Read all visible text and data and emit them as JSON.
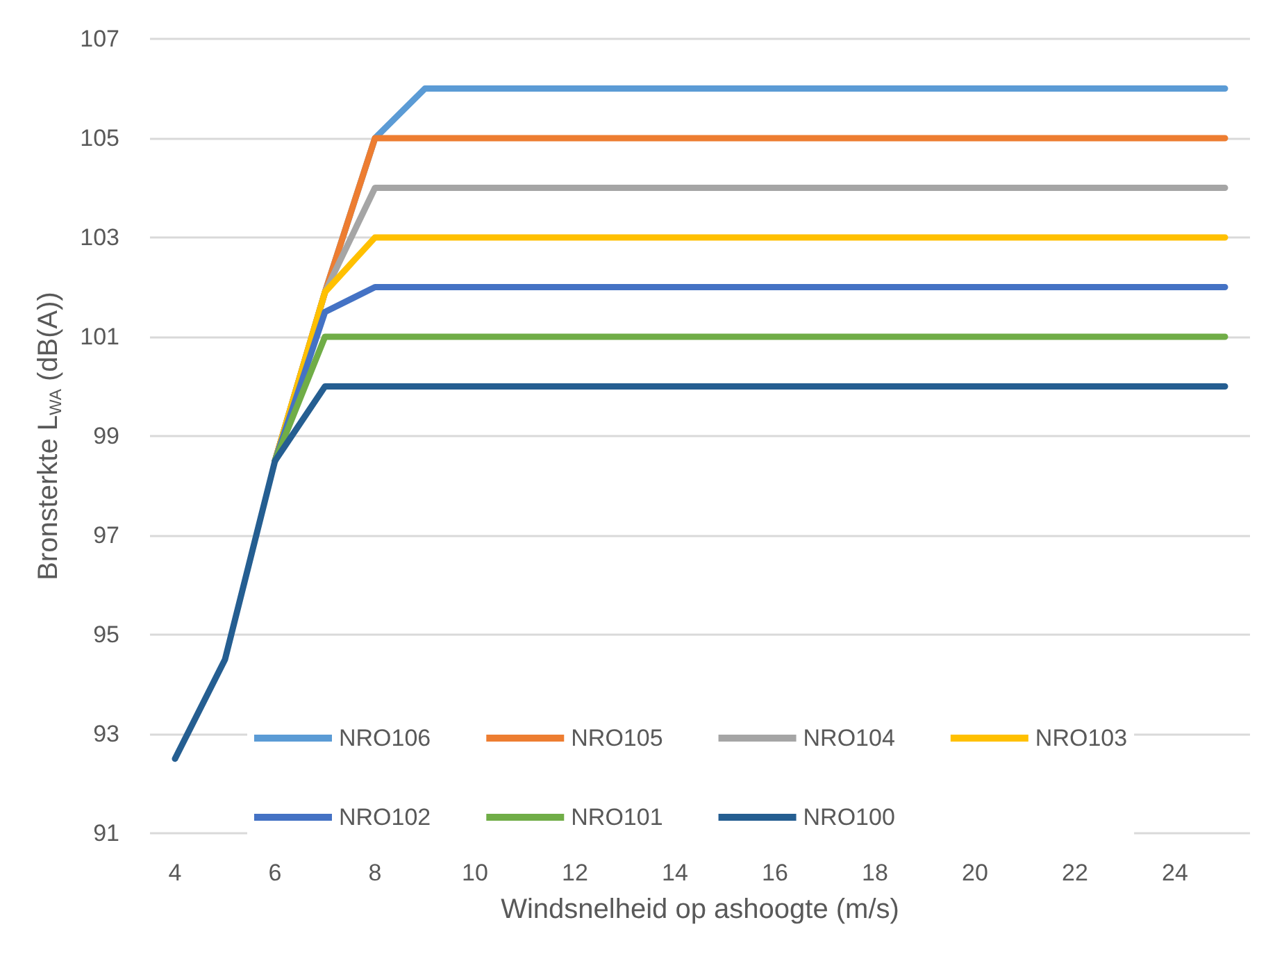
{
  "chart_data": {
    "type": "line",
    "xlabel": "Windsnelheid op ashoogte (m/s)",
    "ylabel": "Bronsterkte L$_{WA}$ (dB(A))",
    "x": [
      4,
      5,
      6,
      7,
      8,
      9,
      10,
      11,
      12,
      13,
      14,
      15,
      16,
      17,
      18,
      19,
      20,
      21,
      22,
      23,
      24,
      25
    ],
    "xlim": [
      3.5,
      25.5
    ],
    "xticks": [
      4,
      6,
      8,
      10,
      12,
      14,
      16,
      18,
      20,
      22,
      24
    ],
    "ylim": [
      91,
      107
    ],
    "yticks": [
      91,
      93,
      95,
      97,
      99,
      101,
      103,
      105,
      107
    ],
    "grid": "y",
    "legend": "bottom",
    "marker": "none",
    "line_style": "solid",
    "series": [
      {
        "name": "NRO106",
        "color": "#5b9bd5",
        "values": [
          null,
          null,
          98.5,
          101.9,
          105,
          106,
          106,
          106,
          106,
          106,
          106,
          106,
          106,
          106,
          106,
          106,
          106,
          106,
          106,
          106,
          106,
          106
        ]
      },
      {
        "name": "NRO105",
        "color": "#ed7d31",
        "values": [
          null,
          null,
          98.5,
          101.9,
          105,
          105,
          105,
          105,
          105,
          105,
          105,
          105,
          105,
          105,
          105,
          105,
          105,
          105,
          105,
          105,
          105,
          105
        ]
      },
      {
        "name": "NRO104",
        "color": "#a5a5a5",
        "values": [
          null,
          null,
          98.5,
          101.9,
          104,
          104,
          104,
          104,
          104,
          104,
          104,
          104,
          104,
          104,
          104,
          104,
          104,
          104,
          104,
          104,
          104,
          104
        ]
      },
      {
        "name": "NRO103",
        "color": "#ffc000",
        "values": [
          null,
          null,
          98.5,
          101.9,
          103,
          103,
          103,
          103,
          103,
          103,
          103,
          103,
          103,
          103,
          103,
          103,
          103,
          103,
          103,
          103,
          103,
          103
        ]
      },
      {
        "name": "NRO102",
        "color": "#4472c4",
        "values": [
          null,
          null,
          98.5,
          101.5,
          102,
          102,
          102,
          102,
          102,
          102,
          102,
          102,
          102,
          102,
          102,
          102,
          102,
          102,
          102,
          102,
          102,
          102
        ]
      },
      {
        "name": "NRO101",
        "color": "#70ad47",
        "values": [
          null,
          null,
          98.5,
          101,
          101,
          101,
          101,
          101,
          101,
          101,
          101,
          101,
          101,
          101,
          101,
          101,
          101,
          101,
          101,
          101,
          101,
          101
        ]
      },
      {
        "name": "NRO100",
        "color": "#255e91",
        "values": [
          92.5,
          94.5,
          98.5,
          100,
          100,
          100,
          100,
          100,
          100,
          100,
          100,
          100,
          100,
          100,
          100,
          100,
          100,
          100,
          100,
          100,
          100,
          100
        ]
      }
    ]
  }
}
